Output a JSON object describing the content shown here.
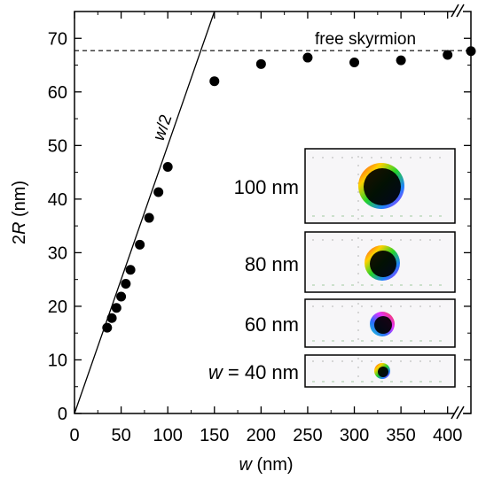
{
  "chart_data": {
    "type": "scatter",
    "xlabel_var": "w",
    "xlabel_unit": " (nm)",
    "ylabel_num": "2",
    "ylabel_var": "R",
    "ylabel_unit": " (nm)",
    "xlim": [
      0,
      425
    ],
    "ylim": [
      0,
      75
    ],
    "x_ticks": [
      0,
      50,
      100,
      150,
      200,
      250,
      300,
      350,
      400
    ],
    "y_ticks": [
      0,
      10,
      20,
      30,
      40,
      50,
      60,
      70
    ],
    "axis_break": "x-axis near 400 (double slash on top edge)",
    "series": [
      {
        "marker": "filled-circle",
        "color": "#000000",
        "x": [
          35,
          40,
          45,
          50,
          55,
          60,
          70,
          80,
          90,
          100,
          150,
          200,
          250,
          300,
          350,
          400,
          425
        ],
        "y": [
          16.0,
          17.8,
          19.7,
          21.8,
          24.2,
          26.8,
          31.5,
          36.5,
          41.3,
          46.0,
          62.0,
          65.2,
          66.4,
          65.5,
          65.9,
          66.9,
          67.6
        ]
      }
    ],
    "reference_lines": [
      {
        "kind": "line",
        "label": "w/2",
        "label_var": "w",
        "label_rest": "/2",
        "slope": 0.5,
        "intercept": 0
      },
      {
        "kind": "hline-dashed",
        "label": "free skyrmion",
        "y": 67.7
      }
    ],
    "insets": [
      {
        "label_prefix": "",
        "label_value": "100 nm",
        "width_nm": 100
      },
      {
        "label_prefix": "",
        "label_value": "80 nm",
        "width_nm": 80
      },
      {
        "label_prefix": "",
        "label_value": "60 nm",
        "width_nm": 60
      },
      {
        "label_prefix": "w",
        "label_value": " = 40 nm",
        "width_nm": 40
      }
    ]
  }
}
